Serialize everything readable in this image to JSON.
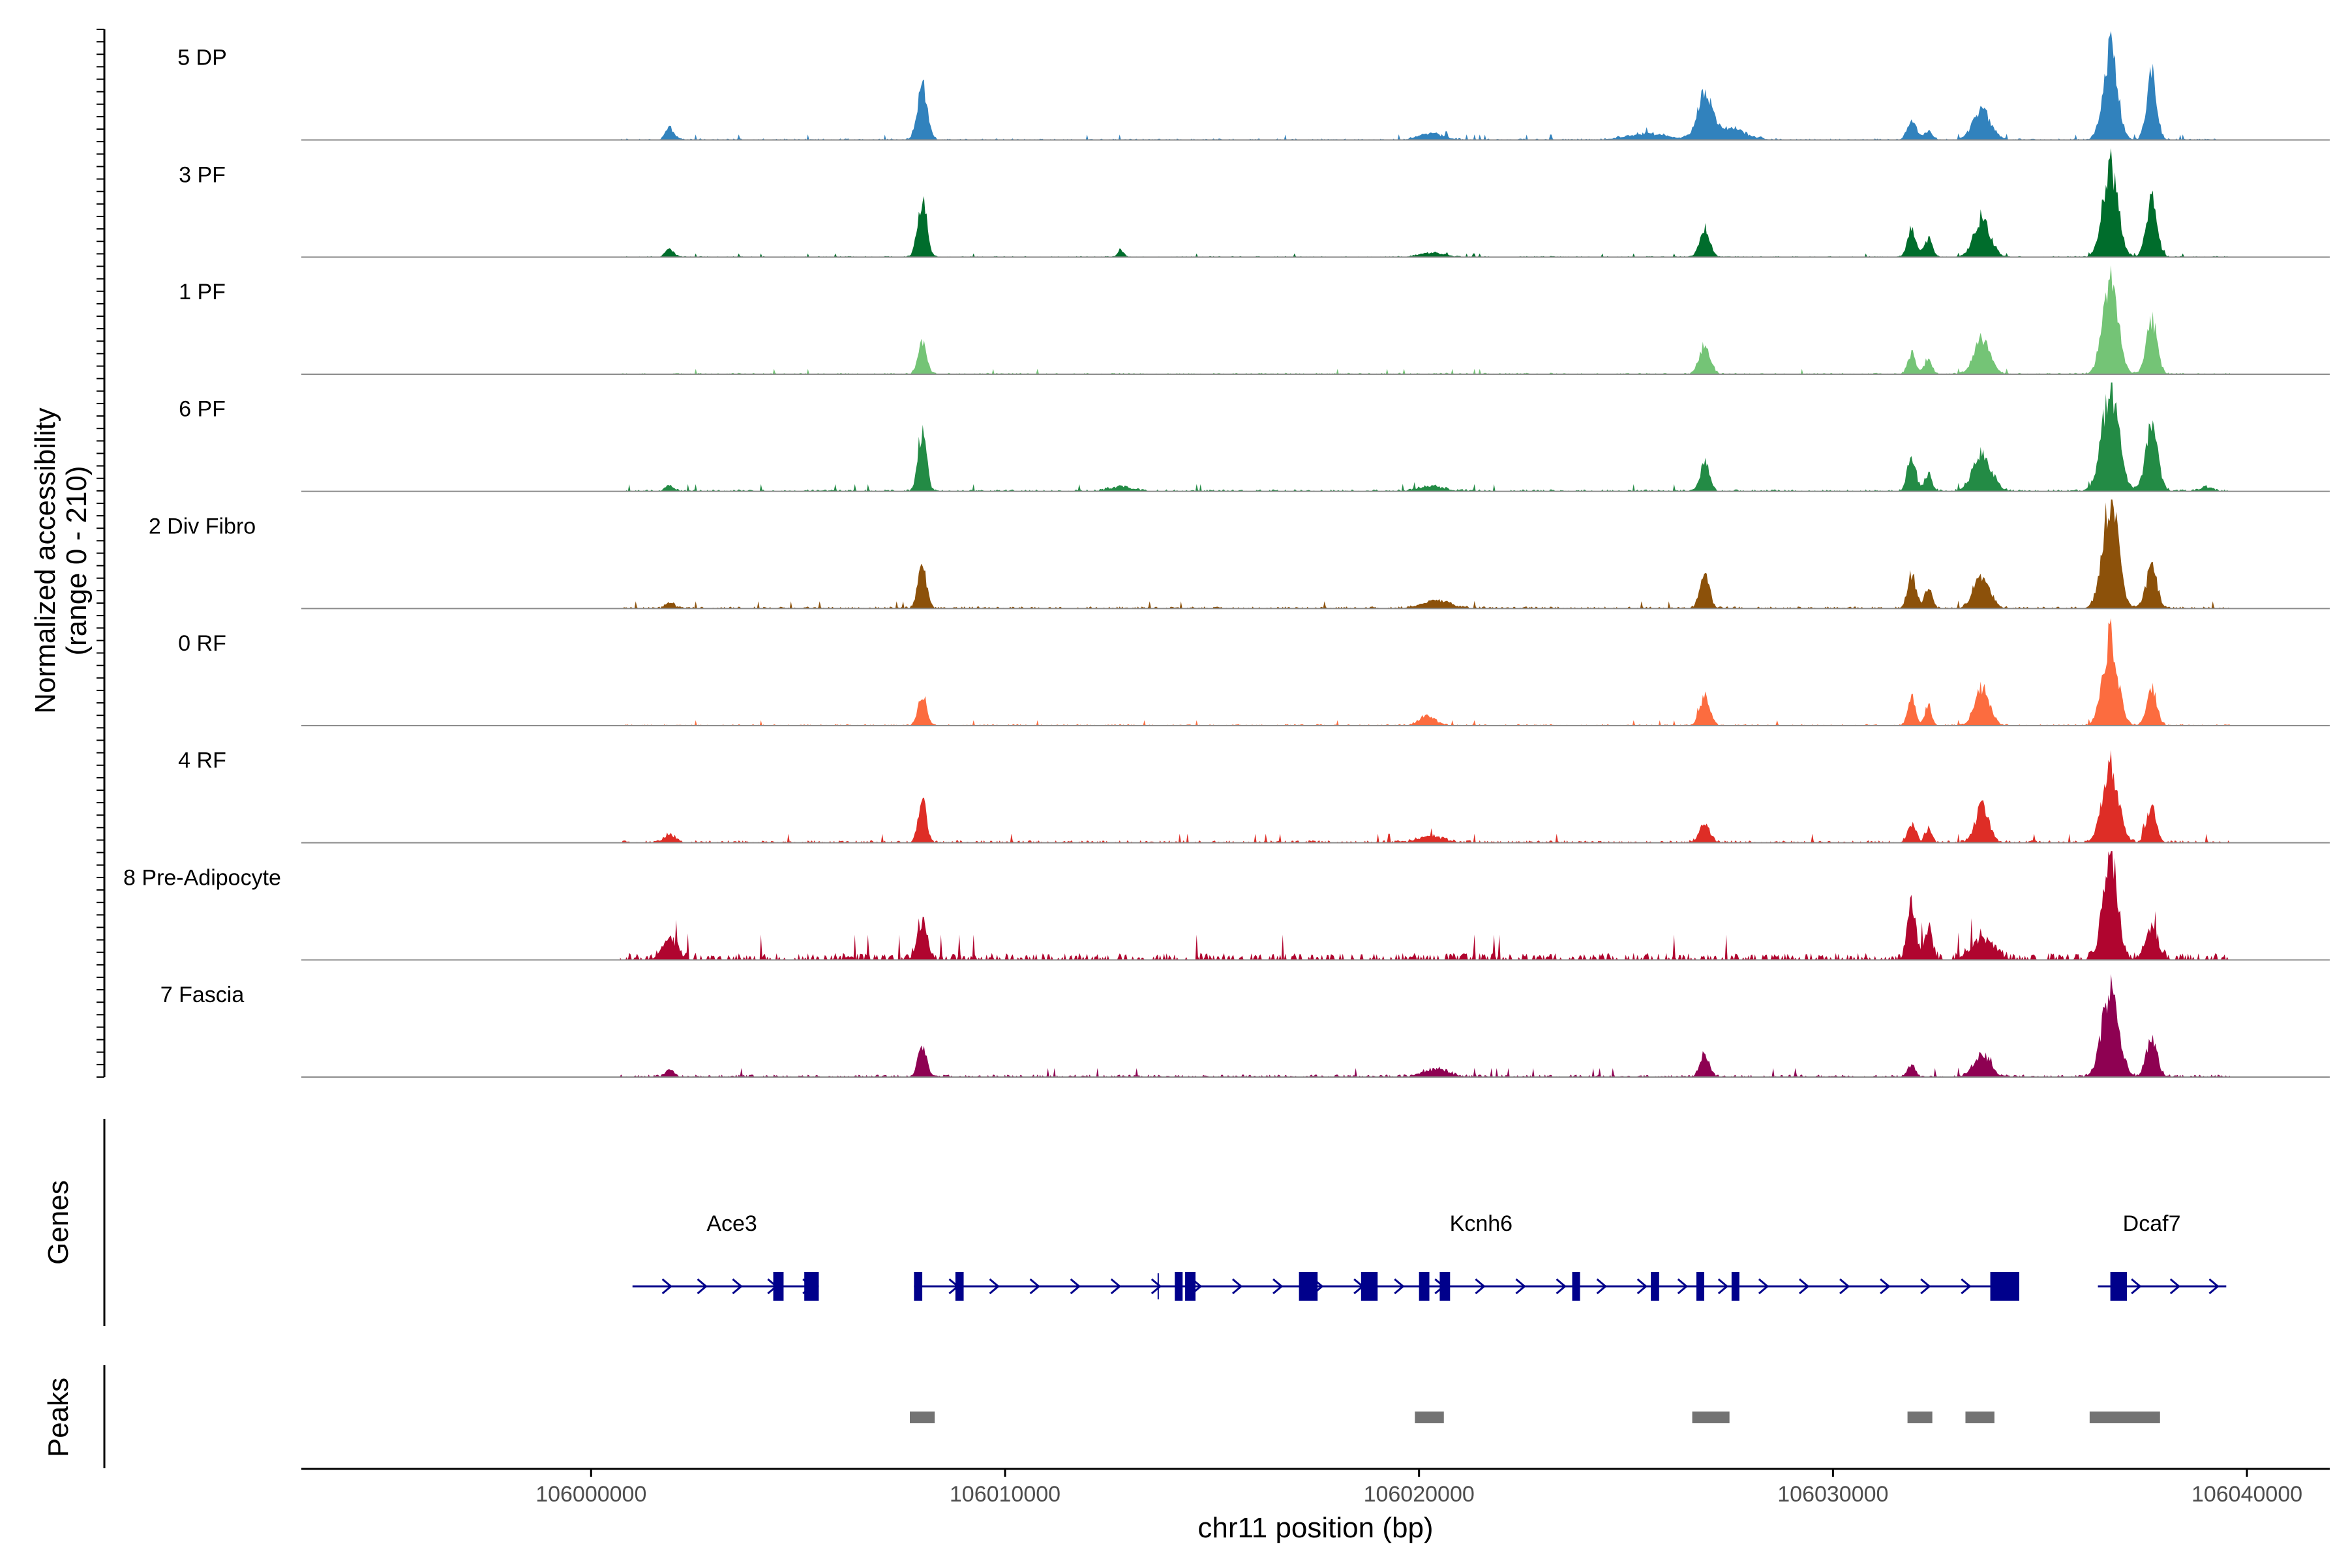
{
  "chart_data": {
    "type": "area",
    "title": "",
    "region": "chr11",
    "xlabel": "chr11 position (bp)",
    "xlim": [
      105993000,
      106042000
    ],
    "x_ticks": [
      106000000,
      106010000,
      106020000,
      106030000,
      106040000
    ],
    "x_tick_labels": [
      "106000000",
      "106010000",
      "106020000",
      "106030000",
      "106040000"
    ],
    "coverage_panel": {
      "ylabel_line1": "Normalized accessibility",
      "ylabel_line2": "(range 0 - 210)",
      "ylim": [
        0,
        210
      ]
    },
    "series": [
      {
        "name": "5 DP",
        "color": "#3182bd",
        "peaks": [
          [
            106001900,
            100,
            24
          ],
          [
            106008000,
            120,
            105
          ],
          [
            106020300,
            300,
            12
          ],
          [
            106025500,
            500,
            12
          ],
          [
            106026900,
            160,
            85
          ],
          [
            106027400,
            450,
            22
          ],
          [
            106031900,
            110,
            38
          ],
          [
            106032300,
            100,
            18
          ],
          [
            106033600,
            220,
            55
          ],
          [
            106036700,
            170,
            175
          ],
          [
            106037700,
            120,
            125
          ]
        ],
        "noise": 3
      },
      {
        "name": "3 PF",
        "color": "#006d2c",
        "peaks": [
          [
            106001900,
            100,
            16
          ],
          [
            106008000,
            110,
            115
          ],
          [
            106012800,
            80,
            12
          ],
          [
            106020300,
            300,
            8
          ],
          [
            106026900,
            120,
            55
          ],
          [
            106031900,
            100,
            58
          ],
          [
            106032300,
            100,
            35
          ],
          [
            106033600,
            200,
            72
          ],
          [
            106036700,
            180,
            180
          ],
          [
            106037700,
            130,
            110
          ]
        ],
        "noise": 2
      },
      {
        "name": "1 PF",
        "color": "#74c476",
        "peaks": [
          [
            106008000,
            100,
            68
          ],
          [
            106026900,
            130,
            55
          ],
          [
            106031900,
            90,
            40
          ],
          [
            106032300,
            90,
            32
          ],
          [
            106033600,
            190,
            68
          ],
          [
            106036700,
            180,
            188
          ],
          [
            106037700,
            130,
            105
          ]
        ],
        "noise": 3
      },
      {
        "name": "6 PF",
        "color": "#238b45",
        "peaks": [
          [
            106001900,
            100,
            12
          ],
          [
            106008000,
            100,
            120
          ],
          [
            106012800,
            300,
            8
          ],
          [
            106020300,
            300,
            10
          ],
          [
            106026900,
            110,
            55
          ],
          [
            106031900,
            100,
            68
          ],
          [
            106032300,
            90,
            35
          ],
          [
            106033600,
            220,
            70
          ],
          [
            106036700,
            200,
            200
          ],
          [
            106037700,
            150,
            120
          ],
          [
            106039000,
            150,
            8
          ]
        ],
        "noise": 4
      },
      {
        "name": "2 Div Fibro",
        "color": "#8c510a",
        "peaks": [
          [
            106001900,
            100,
            12
          ],
          [
            106008000,
            100,
            88
          ],
          [
            106020400,
            350,
            15
          ],
          [
            106026900,
            110,
            72
          ],
          [
            106031900,
            100,
            70
          ],
          [
            106032300,
            90,
            42
          ],
          [
            106033600,
            200,
            58
          ],
          [
            106036700,
            190,
            210
          ],
          [
            106037700,
            130,
            80
          ]
        ],
        "noise": 4
      },
      {
        "name": "0 RF",
        "color": "#fc6c3f",
        "peaks": [
          [
            106008000,
            100,
            65
          ],
          [
            106020200,
            200,
            18
          ],
          [
            106026900,
            120,
            55
          ],
          [
            106031900,
            90,
            58
          ],
          [
            106032300,
            80,
            42
          ],
          [
            106033600,
            180,
            72
          ],
          [
            106036700,
            180,
            170
          ],
          [
            106037700,
            120,
            75
          ]
        ],
        "noise": 3
      },
      {
        "name": "4 RF",
        "color": "#de2d26",
        "peaks": [
          [
            106001900,
            150,
            14
          ],
          [
            106008000,
            100,
            80
          ],
          [
            106020300,
            300,
            12
          ],
          [
            106026900,
            130,
            35
          ],
          [
            106031900,
            100,
            35
          ],
          [
            106032300,
            80,
            28
          ],
          [
            106033600,
            160,
            70
          ],
          [
            106036700,
            190,
            145
          ],
          [
            106037700,
            120,
            68
          ]
        ],
        "noise": 5
      },
      {
        "name": "8 Pre-Adipocyte",
        "color": "#b0052f",
        "peaks": [
          [
            106001900,
            180,
            42
          ],
          [
            106008000,
            120,
            78
          ],
          [
            106031900,
            100,
            105
          ],
          [
            106032300,
            100,
            62
          ],
          [
            106033600,
            260,
            42
          ],
          [
            106036700,
            170,
            205
          ],
          [
            106037700,
            160,
            55
          ]
        ],
        "noise": 14
      },
      {
        "name": "7 Fascia",
        "color": "#8e0152",
        "peaks": [
          [
            106001900,
            100,
            15
          ],
          [
            106008000,
            100,
            62
          ],
          [
            106020400,
            300,
            15
          ],
          [
            106026900,
            110,
            45
          ],
          [
            106031900,
            90,
            22
          ],
          [
            106033600,
            200,
            42
          ],
          [
            106036700,
            200,
            162
          ],
          [
            106037700,
            130,
            75
          ]
        ],
        "noise": 5
      }
    ],
    "genes_panel": {
      "ylabel": "Genes",
      "genes": [
        {
          "name": "Ace3",
          "label_x": 106003400,
          "start": 106001000,
          "end": 106005500,
          "exons": [
            [
              106004400,
              106004650
            ],
            [
              106005150,
              106005500
            ]
          ]
        },
        {
          "name": "Kcnh6",
          "label_x": 106021500,
          "start": 106007800,
          "end": 106034500,
          "exons": [
            [
              106007800,
              106008000
            ],
            [
              106008800,
              106009000
            ],
            [
              106014100,
              106014250
            ],
            [
              106014350,
              106014600
            ],
            [
              106017100,
              106017550
            ],
            [
              106018600,
              106019000
            ],
            [
              106020000,
              106020250
            ],
            [
              106020500,
              106020750
            ],
            [
              106023700,
              106023850
            ],
            [
              106025600,
              106025800
            ],
            [
              106026700,
              106026850
            ],
            [
              106027550,
              106027700
            ],
            [
              106033800,
              106034500
            ]
          ]
        },
        {
          "name": "Dcaf7",
          "label_x": 106037700,
          "start": 106036400,
          "end": 106039500,
          "exons": [
            [
              106036700,
              106037100
            ]
          ]
        }
      ]
    },
    "peaks_panel": {
      "ylabel": "Peaks",
      "regions": [
        [
          106007700,
          106008300
        ],
        [
          106019900,
          106020600
        ],
        [
          106026600,
          106027500
        ],
        [
          106031800,
          106032400
        ],
        [
          106033200,
          106033900
        ],
        [
          106036200,
          106037900
        ]
      ]
    }
  }
}
